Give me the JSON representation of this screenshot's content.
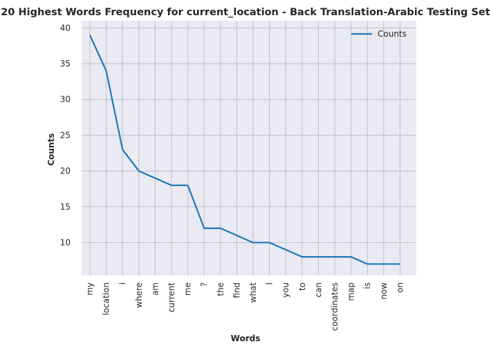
{
  "chart_data": {
    "type": "line",
    "title": "20 Highest Words Frequency for current_location - Back Translation-Arabic Testing Set",
    "xlabel": "Words",
    "ylabel": "Counts",
    "categories": [
      "my",
      "location",
      "i",
      "where",
      "am",
      "current",
      "me",
      "?",
      "the",
      "find",
      "what",
      "I",
      "you",
      "to",
      "can",
      "coordinates",
      "map",
      "is",
      "now",
      "on"
    ],
    "series": [
      {
        "name": "Counts",
        "color": "#1f77b4",
        "values": [
          39,
          34,
          23,
          20,
          19,
          18,
          18,
          12,
          12,
          11,
          10,
          10,
          9,
          8,
          8,
          8,
          8,
          7,
          7,
          7
        ]
      }
    ],
    "ylim": [
      5.4,
      41
    ],
    "yticks": [
      10,
      15,
      20,
      25,
      30,
      35,
      40
    ],
    "grid": true,
    "legend_position": "top-right",
    "background": "#eaeaf2",
    "grid_color": "#c0c0c8"
  }
}
